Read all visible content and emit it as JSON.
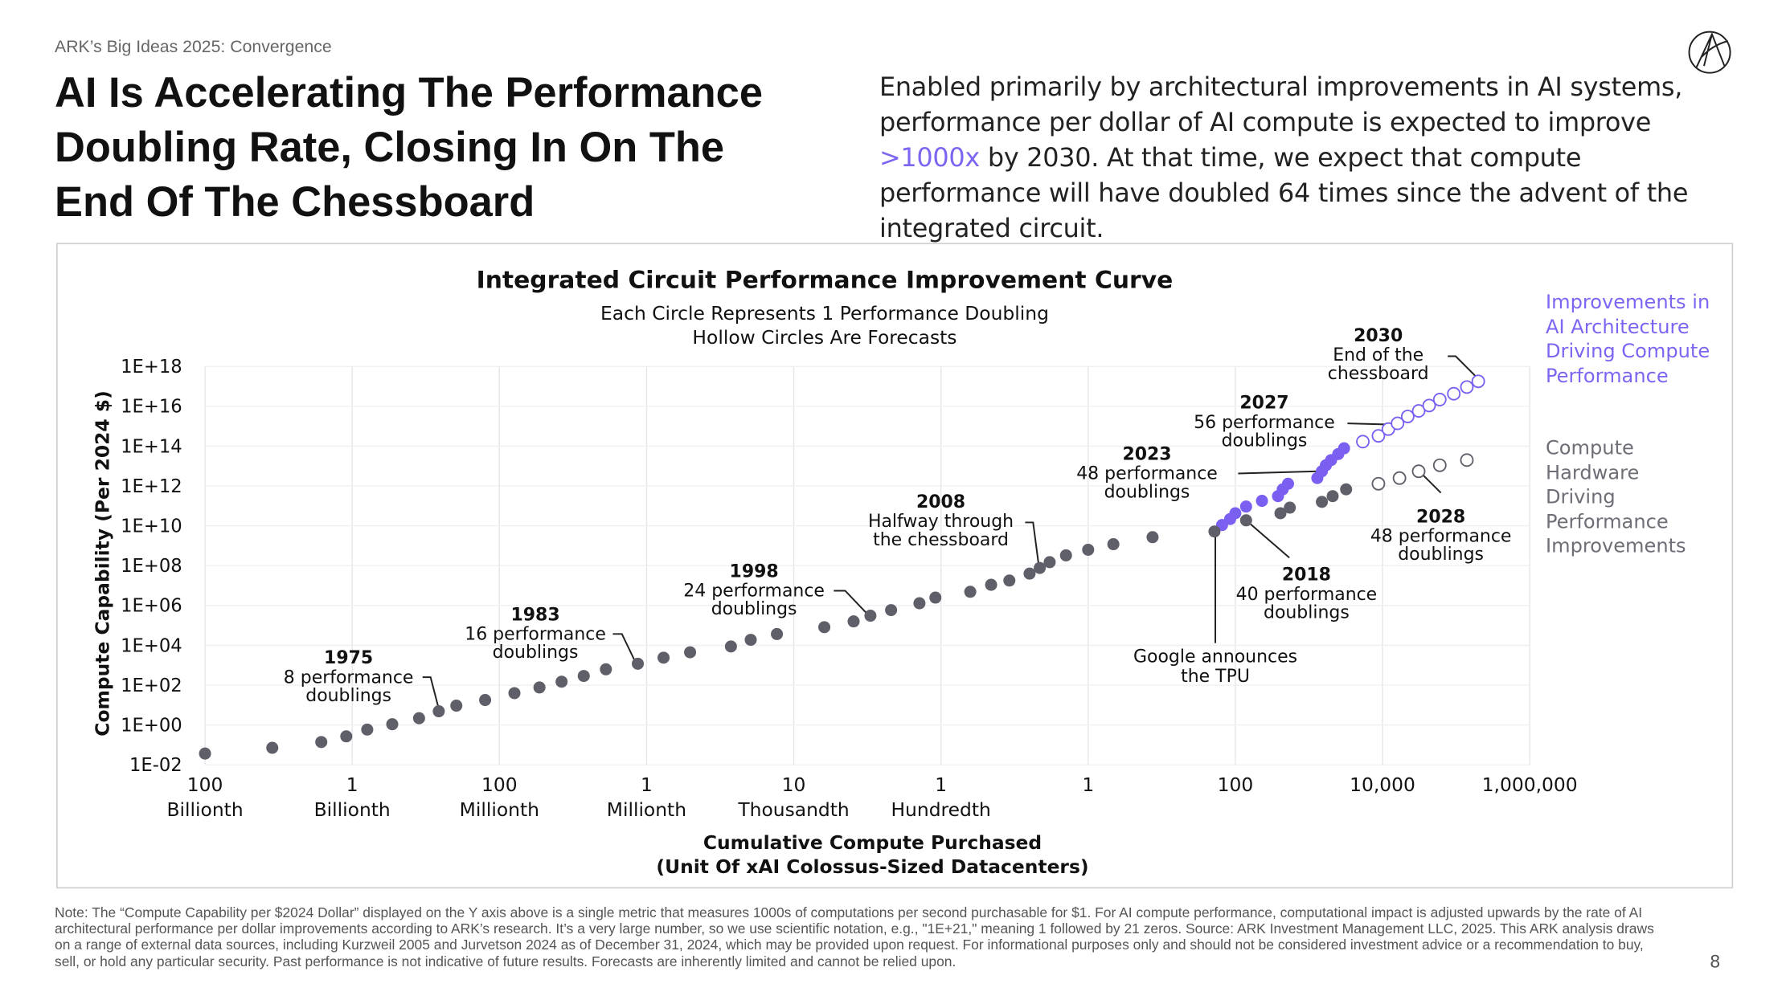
{
  "header": {
    "kicker": "ARK’s Big Ideas 2025: Convergence",
    "title": "AI Is Accelerating The Performance\nDoubling Rate, Closing In On The\nEnd Of The Chessboard",
    "paragraph": [
      "Enabled primarily by architectural improvements in AI systems, performance per dollar of AI compute is expected to improve ",
      ">1000x",
      " by 2030. At that time, we expect that compute performance will have doubled 64 times since the advent of the integrated circuit."
    ]
  },
  "chart_data": {
    "type": "scatter",
    "title": "Integrated Circuit Performance Improvement Curve",
    "subtitle": "Each Circle Represents 1 Performance Doubling\nHollow Circles Are Forecasts",
    "x_label": "Cumulative Compute Purchased\n(Unit Of xAI Colossus-Sized Datacenters)",
    "y_label": "Compute Capability (Per 2024 $)",
    "xscale": "log",
    "yscale": "log",
    "xlim": [
      1e-12,
      1000000.0
    ],
    "ylim": [
      0.01,
      1e+18
    ],
    "xticks": [
      {
        "value": 1e-12,
        "label": "100\nBillionth"
      },
      {
        "value": 1e-10,
        "label": "1\nBillionth"
      },
      {
        "value": 1e-08,
        "label": "100\nMillionth"
      },
      {
        "value": 1e-06,
        "label": "1\nMillionth"
      },
      {
        "value": 0.0001,
        "label": "10\nThousandth"
      },
      {
        "value": 0.01,
        "label": "1\nHundredth"
      },
      1,
      100,
      {
        "value": 10000,
        "label": "10,000"
      },
      {
        "value": 1000000,
        "label": "1,000,000"
      }
    ],
    "yticks": [
      {
        "value": 0.01,
        "label": "1E-02"
      },
      {
        "value": 1,
        "label": "1E+00"
      },
      {
        "value": 100.0,
        "label": "1E+02"
      },
      {
        "value": 10000.0,
        "label": "1E+04"
      },
      {
        "value": 1000000.0,
        "label": "1E+06"
      },
      {
        "value": 100000000.0,
        "label": "1E+08"
      },
      {
        "value": 10000000000.0,
        "label": "1E+10"
      },
      {
        "value": 1000000000000.0,
        "label": "1E+12"
      },
      {
        "value": 100000000000000.0,
        "label": "1E+14"
      },
      {
        "value": 1e+16,
        "label": "1E+16"
      },
      {
        "value": 1e+18,
        "label": "1E+18"
      }
    ],
    "grid": true,
    "legend_position": "right",
    "series": [
      {
        "name": "Improvements in\nAI Architecture\nDriving Compute\nPerformance",
        "color": "#7b5ff0",
        "legend_color": "#7b66f2",
        "x": [
          66,
          85,
          100,
          140,
          230,
          380,
          440,
          520,
          1300,
          1500,
          1700,
          2000,
          2500,
          3000,
          5400,
          8800,
          12000,
          16000,
          22000,
          31000,
          43000,
          60000,
          93000,
          140000,
          200000
        ],
        "values": [
          11000000000.0,
          22000000000.0,
          43000000000.0,
          93000000000.0,
          180000000000.0,
          310000000000.0,
          680000000000.0,
          1300000000000.0,
          2500000000000.0,
          5500000000000.0,
          11000000000000.0,
          20000000000000.0,
          40000000000000.0,
          78000000000000.0,
          170000000000000.0,
          330000000000000.0,
          720000000000000.0,
          1400000000000000.0,
          3100000000000000.0,
          5900000000000000.0,
          1.1e+16,
          2.2e+16,
          4.3e+16,
          9.3e+16,
          1.8e+17
        ],
        "forecast": [
          false,
          false,
          false,
          false,
          false,
          false,
          false,
          false,
          false,
          false,
          false,
          false,
          false,
          false,
          true,
          true,
          true,
          true,
          true,
          true,
          true,
          true,
          true,
          true,
          true
        ]
      },
      {
        "name": "Compute\nHardware\nDriving\nPerformance\nImprovements",
        "color": "#5e5f68",
        "legend_color": "#6d6e76",
        "x": [
          1e-12,
          8.2e-12,
          3.8e-11,
          8.3e-11,
          1.6e-10,
          3.5e-10,
          8.1e-10,
          1.5e-09,
          2.6e-09,
          6.4e-09,
          1.6e-08,
          3.5e-08,
          7e-08,
          1.4e-07,
          2.8e-07,
          7.6e-07,
          1.7e-06,
          3.9e-06,
          1.4e-05,
          2.6e-05,
          5.9e-05,
          0.00026,
          0.00065,
          0.0011,
          0.0021,
          0.0051,
          0.0084,
          0.025,
          0.048,
          0.085,
          0.16,
          0.22,
          0.3,
          0.5,
          1.0,
          2.2,
          7.5,
          52,
          140,
          410,
          550,
          1500,
          2100,
          3200,
          8800,
          17000,
          31000,
          60000,
          140000
        ],
        "values": [
          0.037,
          0.072,
          0.14,
          0.27,
          0.59,
          1.1,
          2.2,
          4.9,
          9.4,
          18,
          40,
          77,
          150,
          290,
          630,
          1200,
          2400,
          4500,
          8800,
          19000,
          37000,
          82000,
          160000.0,
          310000.0,
          590000.0,
          1300000.0,
          2500000.0,
          4900000.0,
          11000000.0,
          18000000.0,
          40000000.0,
          77000000.0,
          150000000.0,
          330000000.0,
          630000000.0,
          1200000000.0,
          2700000000.0,
          5200000000.0,
          19000000000.0,
          43000000000.0,
          82000000000.0,
          160000000000.0,
          310000000000.0,
          680000000000.0,
          1300000000000.0,
          2500000000000.0,
          5500000000000.0,
          11000000000000.0,
          20000000000000.0
        ],
        "forecast": [
          false,
          false,
          false,
          false,
          false,
          false,
          false,
          false,
          false,
          false,
          false,
          false,
          false,
          false,
          false,
          false,
          false,
          false,
          false,
          false,
          false,
          false,
          false,
          false,
          false,
          false,
          false,
          false,
          false,
          false,
          false,
          false,
          false,
          false,
          false,
          false,
          false,
          false,
          false,
          false,
          false,
          false,
          false,
          false,
          true,
          true,
          true,
          true,
          true
        ]
      }
    ],
    "annotations": [
      {
        "year": "1975",
        "text": "8 performance\ndoublings"
      },
      {
        "year": "1983",
        "text": "16 performance\ndoublings"
      },
      {
        "year": "1998",
        "text": "24 performance\ndoublings"
      },
      {
        "year": "2008",
        "text": "Halfway through\nthe chessboard"
      },
      {
        "year": "2023",
        "text": "48 performance\ndoublings"
      },
      {
        "year": "2027",
        "text": "56 performance\ndoublings"
      },
      {
        "year": "2030",
        "text": "End of the\nchessboard"
      },
      {
        "year": "2028",
        "text": "48 performance\ndoublings"
      },
      {
        "year": "2018",
        "text": "40 performance\ndoublings"
      },
      {
        "text": "Google announces\nthe TPU"
      }
    ]
  },
  "footer": {
    "note": "Note: The “Compute Capability per $2024 Dollar” displayed on the Y axis above is a single metric that measures 1000s of computations per second purchasable for $1. For AI compute performance, computational impact is adjusted upwards by the rate of AI architectural performance per dollar improvements according to ARK’s research. It’s a very large number, so we use scientific notation, e.g., \"1E+21,\" meaning 1 followed by 21 zeros. Source: ARK Investment Management LLC, 2025. This ARK analysis draws on a range of external data sources, including Kurzweil 2005 and Jurvetson 2024 as of December 31, 2024, which may be provided upon request. For informational purposes only and should not be considered investment advice or a recommendation to buy, sell, or hold any particular security. Past performance is not indicative of future results. Forecasts are inherently limited and cannot be relied upon.",
    "page": "8"
  }
}
